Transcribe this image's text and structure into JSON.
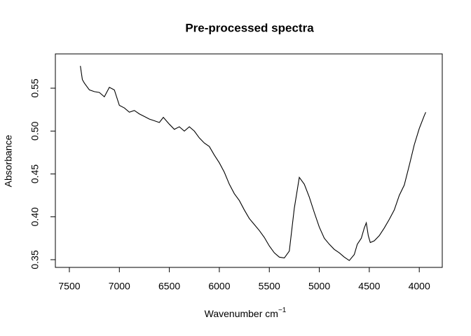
{
  "chart_data": {
    "type": "line",
    "title": "Pre-processed spectra",
    "x_label": "Wavenumber cm",
    "x_label_superscript": "−1",
    "y_label": "Absorbance",
    "x": [
      7390,
      7370,
      7350,
      7300,
      7250,
      7200,
      7150,
      7100,
      7050,
      7000,
      6950,
      6900,
      6850,
      6800,
      6750,
      6700,
      6650,
      6600,
      6560,
      6500,
      6450,
      6400,
      6350,
      6300,
      6250,
      6200,
      6150,
      6100,
      6050,
      6000,
      5950,
      5900,
      5850,
      5800,
      5750,
      5700,
      5650,
      5600,
      5550,
      5500,
      5450,
      5400,
      5350,
      5300,
      5250,
      5200,
      5150,
      5100,
      5050,
      5000,
      4950,
      4900,
      4850,
      4800,
      4750,
      4700,
      4650,
      4620,
      4580,
      4550,
      4530,
      4510,
      4490,
      4450,
      4400,
      4350,
      4300,
      4250,
      4200,
      4150,
      4100,
      4050,
      4000,
      3950,
      3935
    ],
    "series": [
      {
        "color": "#000000",
        "values": [
          0.576,
          0.56,
          0.556,
          0.548,
          0.546,
          0.545,
          0.54,
          0.551,
          0.548,
          0.53,
          0.527,
          0.522,
          0.524,
          0.52,
          0.517,
          0.514,
          0.512,
          0.51,
          0.516,
          0.508,
          0.502,
          0.505,
          0.5,
          0.505,
          0.5,
          0.492,
          0.486,
          0.482,
          0.472,
          0.463,
          0.452,
          0.438,
          0.427,
          0.419,
          0.408,
          0.398,
          0.391,
          0.384,
          0.376,
          0.366,
          0.358,
          0.353,
          0.352,
          0.36,
          0.41,
          0.446,
          0.438,
          0.423,
          0.405,
          0.388,
          0.375,
          0.368,
          0.362,
          0.358,
          0.353,
          0.349,
          0.356,
          0.368,
          0.375,
          0.387,
          0.393,
          0.378,
          0.37,
          0.372,
          0.378,
          0.387,
          0.397,
          0.408,
          0.425,
          0.437,
          0.46,
          0.484,
          0.503,
          0.518,
          0.522
        ]
      }
    ],
    "xlim": [
      7640,
      3770
    ],
    "ylim": [
      0.341,
      0.59
    ],
    "xticks": [
      7500,
      7000,
      6500,
      6000,
      5500,
      5000,
      4500,
      4000
    ],
    "yticks": [
      0.35,
      {
        "value": 0.4,
        "label": "0.40"
      },
      0.45,
      {
        "value": 0.5,
        "label": "0.50"
      },
      0.55
    ]
  }
}
